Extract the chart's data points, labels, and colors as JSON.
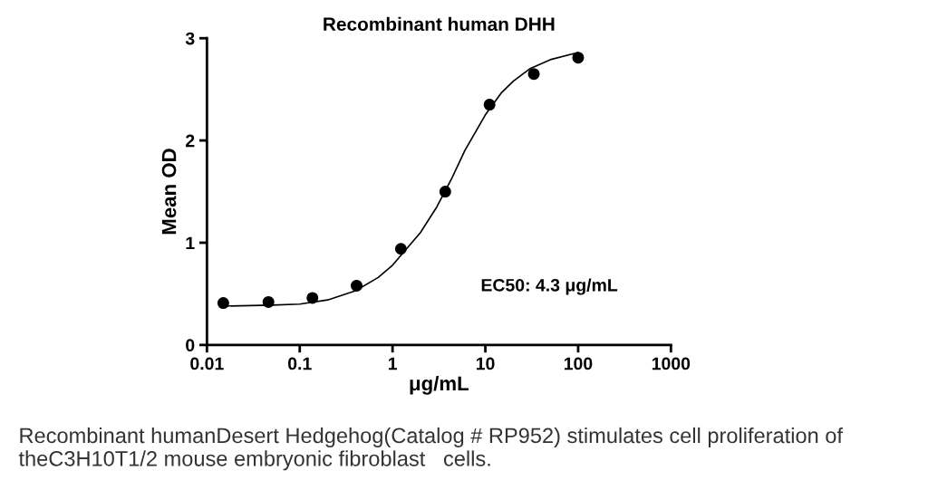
{
  "chart_data": {
    "type": "scatter",
    "title": "Recombinant human DHH",
    "xlabel": "μg/mL",
    "ylabel": "Mean OD",
    "x": [
      0.015,
      0.046,
      0.137,
      0.41,
      1.23,
      3.7,
      11.1,
      33.3,
      100
    ],
    "series": [
      {
        "color": "#000000",
        "marker": "circle",
        "values": [
          0.41,
          0.42,
          0.46,
          0.58,
          0.94,
          1.5,
          2.35,
          2.65,
          2.81
        ]
      },
      {
        "type": "line",
        "color": "#000000",
        "line_style": "solid",
        "marker": "none",
        "x": [
          0.015,
          0.05,
          0.1,
          0.2,
          0.4,
          0.7,
          1,
          2,
          3,
          4.3,
          6,
          10,
          15,
          20,
          30,
          50,
          100
        ],
        "values": [
          0.38,
          0.39,
          0.4,
          0.44,
          0.53,
          0.66,
          0.78,
          1.1,
          1.35,
          1.62,
          1.9,
          2.25,
          2.47,
          2.58,
          2.7,
          2.79,
          2.86
        ]
      }
    ],
    "log": "x",
    "xlim": [
      0.01,
      1000
    ],
    "xticks": [
      0.01,
      0.1,
      1,
      10,
      100,
      1000
    ],
    "ylim": [
      0,
      3
    ],
    "yticks": [
      0,
      1,
      2,
      3
    ],
    "grid": false,
    "legend": false,
    "annotations": [
      "EC50: 4.3 μg/mL",
      "Recombinant humanDesert Hedgehog(Catalog # RP952) stimulates cell proliferation of theC3H10T1/2 mouse embryonic fibroblast   cells."
    ]
  }
}
